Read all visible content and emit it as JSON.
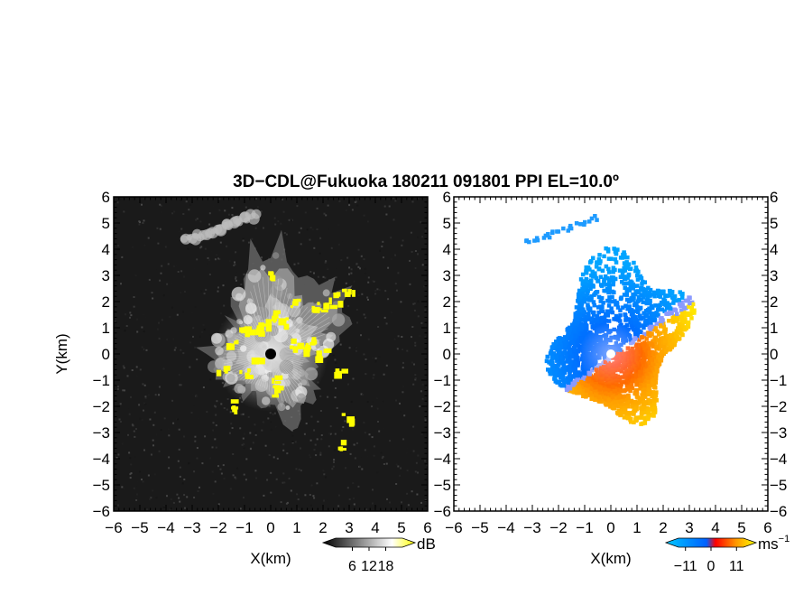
{
  "title": "3D−CDL@Fukuoka 180211 091801 PPI EL=10.0º",
  "chart_data": [
    {
      "panel": "left",
      "type": "heatmap",
      "quantity": "signal-to-noise ratio",
      "xlabel": "X(km)",
      "ylabel": "Y(km)",
      "xlim": [
        -6,
        6
      ],
      "ylim": [
        -6,
        6
      ],
      "xticks": [
        "−6",
        "−5",
        "−4",
        "−3",
        "−2",
        "−1",
        "0",
        "1",
        "2",
        "3",
        "4",
        "5",
        "6"
      ],
      "yticks": [
        "−6",
        "−5",
        "−4",
        "−3",
        "−2",
        "−1",
        "0",
        "1",
        "2",
        "3",
        "4",
        "5",
        "6"
      ],
      "colorbar": {
        "unit": "dB",
        "ticks": [
          "6",
          "12",
          "18"
        ],
        "tick_values": [
          6,
          12,
          18
        ],
        "range": [
          0,
          24
        ],
        "colors": [
          "#000000",
          "#ffffff",
          "#ffff00"
        ]
      },
      "background_color": "#1a1a1a",
      "high_value_color": "#ffff00",
      "center_marker_color": "#000000"
    },
    {
      "panel": "right",
      "type": "heatmap",
      "quantity": "radial velocity",
      "xlabel": "X(km)",
      "xlim": [
        -6,
        6
      ],
      "ylim": [
        -6,
        6
      ],
      "xticks": [
        "−6",
        "−5",
        "−4",
        "−3",
        "−2",
        "−1",
        "0",
        "1",
        "2",
        "3",
        "4",
        "5",
        "6"
      ],
      "yticks": [
        "−6",
        "−5",
        "−4",
        "−3",
        "−2",
        "−1",
        "0",
        "1",
        "2",
        "3",
        "4",
        "5",
        "6"
      ],
      "colorbar": {
        "unit": "ms",
        "unit_exponent": "−1",
        "ticks": [
          "−11",
          "0",
          "11"
        ],
        "tick_values": [
          -11,
          0,
          11
        ],
        "range": [
          -14,
          14
        ],
        "colors": [
          "#00c8ff",
          "#0060ff",
          "#ff0000",
          "#ff9900",
          "#ffff00"
        ]
      },
      "background_color": "#ffffff"
    }
  ]
}
